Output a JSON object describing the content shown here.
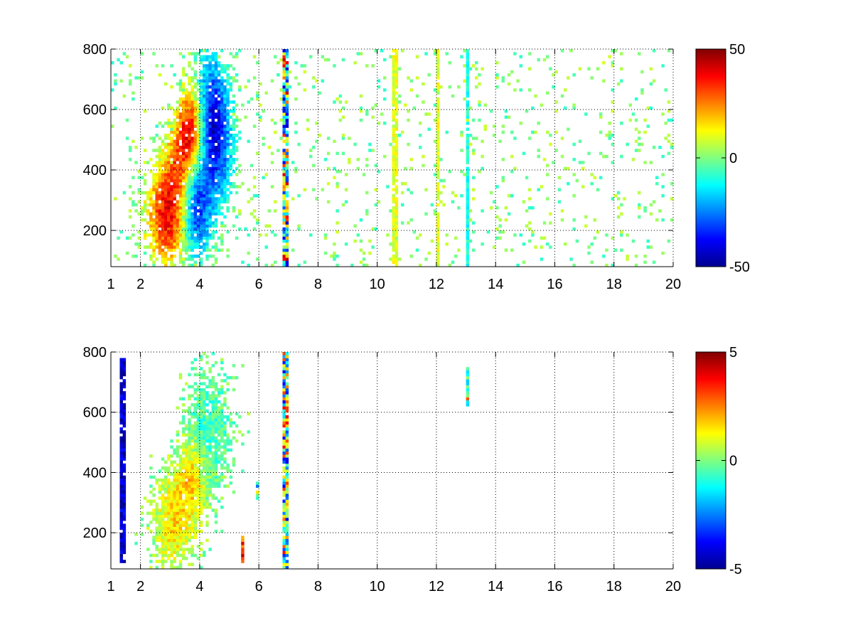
{
  "chart_data": [
    {
      "type": "heatmap",
      "title": "",
      "xlabel": "",
      "ylabel": "",
      "xlim": [
        1,
        20
      ],
      "ylim": [
        80,
        800
      ],
      "xticks": [
        "1",
        "2",
        "4",
        "6",
        "8",
        "10",
        "12",
        "14",
        "16",
        "18",
        "20"
      ],
      "xtick_values": [
        1,
        2,
        4,
        6,
        8,
        10,
        12,
        14,
        16,
        18,
        20
      ],
      "yticks": [
        "200",
        "400",
        "600",
        "800"
      ],
      "ytick_values": [
        200,
        400,
        600,
        800
      ],
      "grid": true,
      "colormap": "jet",
      "colorbar": {
        "min": -50,
        "max": 50,
        "ticks": [
          "50",
          "0",
          "-50"
        ],
        "tick_values": [
          50,
          0,
          -50
        ]
      },
      "value_scale": 50,
      "features": [
        {
          "kind": "blob",
          "x": 2.9,
          "y": 250,
          "sx": 0.45,
          "sy": 110,
          "value": 0.75
        },
        {
          "kind": "blob",
          "x": 3.7,
          "y": 540,
          "sx": 0.3,
          "sy": 90,
          "value": 0.8
        },
        {
          "kind": "blob",
          "x": 3.3,
          "y": 420,
          "sx": 0.35,
          "sy": 90,
          "value": 0.4
        },
        {
          "kind": "blob",
          "x": 4.4,
          "y": 600,
          "sx": 0.4,
          "sy": 130,
          "value": -0.6
        },
        {
          "kind": "blob",
          "x": 3.9,
          "y": 270,
          "sx": 0.35,
          "sy": 110,
          "value": -0.65
        },
        {
          "kind": "blob",
          "x": 4.6,
          "y": 450,
          "sx": 0.35,
          "sy": 120,
          "value": -0.45
        },
        {
          "kind": "column",
          "x": 6.9,
          "value_range": [
            -0.9,
            0.9
          ]
        },
        {
          "kind": "column",
          "x": 10.6,
          "value_range": [
            0.1,
            0.3
          ]
        },
        {
          "kind": "column",
          "x": 12.05,
          "value_range": [
            0.1,
            0.3
          ]
        },
        {
          "kind": "column",
          "x": 13.05,
          "value_range": [
            -0.3,
            -0.1
          ]
        }
      ]
    },
    {
      "type": "heatmap",
      "title": "",
      "xlabel": "",
      "ylabel": "",
      "xlim": [
        1,
        20
      ],
      "ylim": [
        80,
        800
      ],
      "xticks": [
        "1",
        "2",
        "4",
        "6",
        "8",
        "10",
        "12",
        "14",
        "16",
        "18",
        "20"
      ],
      "xtick_values": [
        1,
        2,
        4,
        6,
        8,
        10,
        12,
        14,
        16,
        18,
        20
      ],
      "yticks": [
        "200",
        "400",
        "600",
        "800"
      ],
      "ytick_values": [
        200,
        400,
        600,
        800
      ],
      "grid": true,
      "colormap": "jet",
      "colorbar": {
        "min": -5,
        "max": 5,
        "ticks": [
          "5",
          "0",
          "-5"
        ],
        "tick_values": [
          5,
          0,
          -5
        ]
      },
      "value_scale": 5,
      "features": [
        {
          "kind": "blob",
          "x": 3.1,
          "y": 230,
          "sx": 0.45,
          "sy": 100,
          "value": 0.3
        },
        {
          "kind": "blob",
          "x": 4.3,
          "y": 540,
          "sx": 0.45,
          "sy": 130,
          "value": -0.15
        },
        {
          "kind": "blob",
          "x": 3.7,
          "y": 380,
          "sx": 0.35,
          "sy": 90,
          "value": 0.35
        },
        {
          "kind": "column",
          "x": 6.9,
          "value_range": [
            -0.8,
            0.8
          ]
        },
        {
          "kind": "column",
          "x": 13.05,
          "value_range": [
            -0.5,
            0.6
          ],
          "ymin": 620,
          "ymax": 750
        },
        {
          "kind": "column",
          "x": 1.4,
          "value_range": [
            -1,
            -0.7
          ],
          "ymin": 100,
          "ymax": 780
        },
        {
          "kind": "column",
          "x": 5.95,
          "value_range": [
            -0.8,
            0.8
          ],
          "ymin": 300,
          "ymax": 370
        },
        {
          "kind": "column",
          "x": 5.45,
          "value_range": [
            0.4,
            0.9
          ],
          "ymin": 100,
          "ymax": 190
        }
      ]
    }
  ]
}
